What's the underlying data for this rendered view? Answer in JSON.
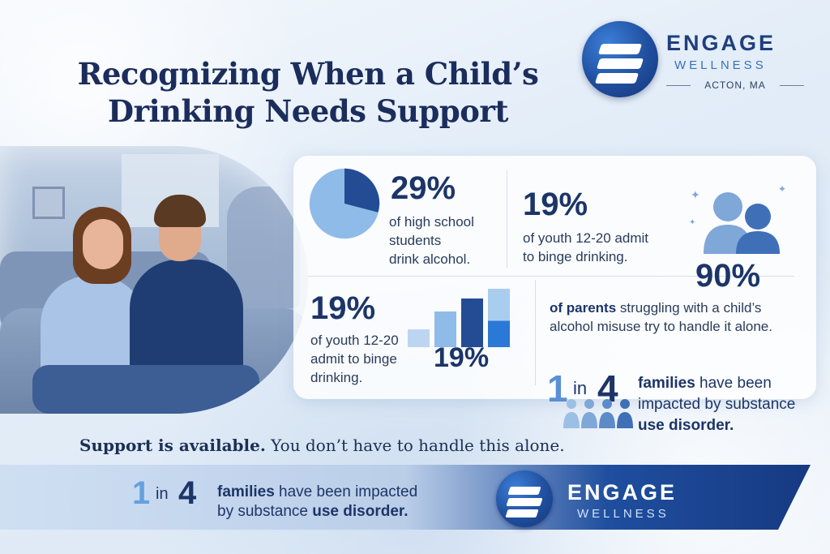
{
  "title": {
    "line1": "Recognizing When a Child’s",
    "line2": "Drinking Needs Support"
  },
  "logo": {
    "name": "ENGAGE",
    "sub": "WELLNESS",
    "location": "ACTON, MA"
  },
  "stats": {
    "stat1": {
      "value": "29%",
      "text1": "of high school",
      "text2": "students",
      "text3": "drink alcohol."
    },
    "stat2": {
      "value": "19%",
      "text1": "of youth 12-20 admit",
      "text2": "to binge drinking."
    },
    "stat3": {
      "value": "90%",
      "bold": "of parents",
      "text1": " struggling with a child’s",
      "text2": "alcohol misuse try to handle it alone."
    },
    "stat4": {
      "value": "19%",
      "text1": "of youth 12-20",
      "text2": "admit to binge",
      "text3": "drinking.",
      "bar_value": "19%"
    }
  },
  "one_in_four": {
    "one": "1",
    "in": "in",
    "four": "4",
    "bold": "families",
    "text1": " have been",
    "text2": "impacted by substance",
    "text3": "use disorder."
  },
  "support": {
    "bold": "Support is available.",
    "text": " You don’t have to handle this alone."
  },
  "footer": {
    "one": "1",
    "in": "in",
    "four": "4",
    "bold": "families",
    "text1": " have been impacted",
    "text2": "by substance ",
    "text2_bold": "use disorder.",
    "logo_name": "ENGAGE",
    "logo_sub": "WELLNESS"
  },
  "colors": {
    "navy": "#1c3568",
    "accent": "#5b8fd4",
    "light_blue": "#a9c8ec"
  },
  "icons": [
    "pie-chart-icon",
    "bar-chart-icon",
    "people-silhouette-icon",
    "family-group-icon",
    "engage-logo-icon"
  ]
}
